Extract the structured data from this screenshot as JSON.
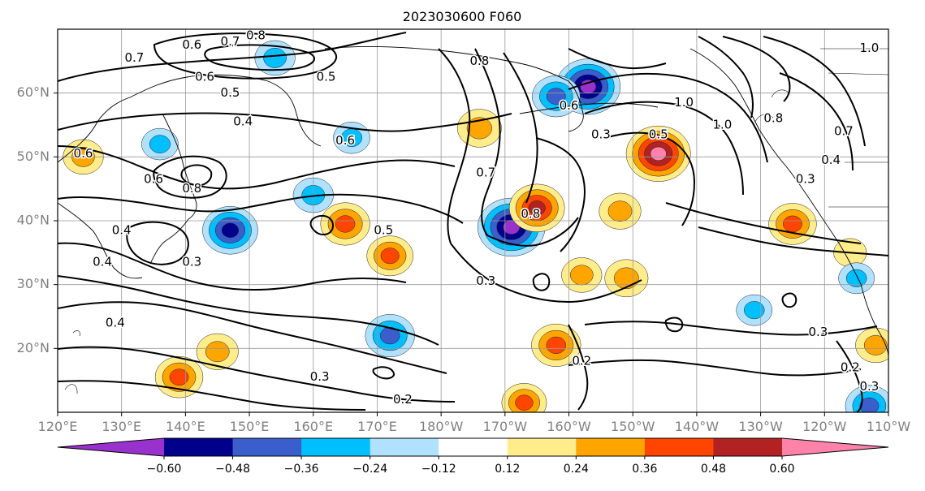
{
  "title": "2023030600 F060",
  "map": {
    "lat_ticks": [
      "60°N",
      "50°N",
      "40°N",
      "30°N",
      "20°N"
    ],
    "lon_ticks": [
      "120°E",
      "130°E",
      "140°E",
      "150°E",
      "160°E",
      "170°E",
      "180°W",
      "170°W",
      "160°W",
      "150°W",
      "140°W",
      "130°W",
      "120°W",
      "110°W"
    ],
    "lat_range": [
      10,
      70
    ],
    "lon_range": [
      120,
      250
    ]
  },
  "contour_labels": [
    {
      "text": "0.6",
      "lon": 141,
      "lat": 67.5
    },
    {
      "text": "0.7",
      "lon": 147,
      "lat": 68.0
    },
    {
      "text": "0.8",
      "lon": 151,
      "lat": 69.0
    },
    {
      "text": "0.7",
      "lon": 132,
      "lat": 65.5
    },
    {
      "text": "0.6",
      "lon": 143,
      "lat": 62.5
    },
    {
      "text": "0.5",
      "lon": 147,
      "lat": 60.0
    },
    {
      "text": "0.5",
      "lon": 162,
      "lat": 62.5
    },
    {
      "text": "0.4",
      "lon": 149,
      "lat": 55.5
    },
    {
      "text": "0.6",
      "lon": 165,
      "lat": 52.5
    },
    {
      "text": "0.6",
      "lon": 124,
      "lat": 50.5
    },
    {
      "text": "0.6",
      "lon": 135,
      "lat": 46.5
    },
    {
      "text": "0.8",
      "lon": 141,
      "lat": 45.0
    },
    {
      "text": "0.4",
      "lon": 130,
      "lat": 38.5
    },
    {
      "text": "0.4",
      "lon": 127,
      "lat": 33.5
    },
    {
      "text": "0.3",
      "lon": 141,
      "lat": 33.5
    },
    {
      "text": "0.4",
      "lon": 129,
      "lat": 24.0
    },
    {
      "text": "0.3",
      "lon": 161,
      "lat": 15.5
    },
    {
      "text": "0.2",
      "lon": 174,
      "lat": 12.0
    },
    {
      "text": "0.5",
      "lon": 171,
      "lat": 38.5
    },
    {
      "text": "0.7",
      "lon": 187,
      "lat": 47.5
    },
    {
      "text": "0.8",
      "lon": 194,
      "lat": 41.0
    },
    {
      "text": "0.3",
      "lon": 187,
      "lat": 30.5
    },
    {
      "text": "0.8",
      "lon": 186,
      "lat": 65.0
    },
    {
      "text": "0.6",
      "lon": 200,
      "lat": 58.0
    },
    {
      "text": "0.3",
      "lon": 205,
      "lat": 53.5
    },
    {
      "text": "0.5",
      "lon": 214,
      "lat": 53.5
    },
    {
      "text": "1.0",
      "lon": 218,
      "lat": 58.5
    },
    {
      "text": "1.0",
      "lon": 224,
      "lat": 55.0
    },
    {
      "text": "0.8",
      "lon": 232,
      "lat": 56.0
    },
    {
      "text": "0.7",
      "lon": 243,
      "lat": 54.0
    },
    {
      "text": "0.4",
      "lon": 241,
      "lat": 49.5
    },
    {
      "text": "0.3",
      "lon": 237,
      "lat": 46.5
    },
    {
      "text": "0.3",
      "lon": 239,
      "lat": 22.5
    },
    {
      "text": "0.2",
      "lon": 244,
      "lat": 17.0
    },
    {
      "text": "0.3",
      "lon": 247,
      "lat": 14.0
    },
    {
      "text": "1.0",
      "lon": 247,
      "lat": 67.0
    },
    {
      "text": "0.2",
      "lon": 202,
      "lat": 18.0
    }
  ],
  "anomalies": [
    {
      "lon": 147,
      "lat": 38.5,
      "value": -0.5
    },
    {
      "lon": 154,
      "lat": 65.5,
      "value": -0.3
    },
    {
      "lon": 203,
      "lat": 61.0,
      "value": -0.62
    },
    {
      "lon": 198,
      "lat": 59.5,
      "value": -0.4
    },
    {
      "lon": 191,
      "lat": 39.0,
      "value": -0.66
    },
    {
      "lon": 172,
      "lat": 22.0,
      "value": -0.42
    },
    {
      "lon": 160,
      "lat": 44.0,
      "value": -0.3
    },
    {
      "lon": 166,
      "lat": 53.0,
      "value": -0.25
    },
    {
      "lon": 136,
      "lat": 52.0,
      "value": -0.25
    },
    {
      "lon": 124,
      "lat": 50.0,
      "value": 0.3
    },
    {
      "lon": 186,
      "lat": 54.5,
      "value": 0.35
    },
    {
      "lon": 195,
      "lat": 42.0,
      "value": 0.5
    },
    {
      "lon": 214,
      "lat": 50.5,
      "value": 0.62
    },
    {
      "lon": 208,
      "lat": 41.5,
      "value": 0.32
    },
    {
      "lon": 235,
      "lat": 39.5,
      "value": 0.4
    },
    {
      "lon": 165,
      "lat": 39.5,
      "value": 0.42
    },
    {
      "lon": 172,
      "lat": 34.5,
      "value": 0.38
    },
    {
      "lon": 198,
      "lat": 20.5,
      "value": 0.42
    },
    {
      "lon": 139,
      "lat": 15.5,
      "value": 0.4
    },
    {
      "lon": 145,
      "lat": 19.5,
      "value": 0.32
    },
    {
      "lon": 193,
      "lat": 11.5,
      "value": 0.36
    },
    {
      "lon": 209,
      "lat": 31.0,
      "value": 0.34
    },
    {
      "lon": 202,
      "lat": 31.5,
      "value": 0.3
    },
    {
      "lon": 248,
      "lat": 20.5,
      "value": 0.3
    },
    {
      "lon": 244,
      "lat": 35.0,
      "value": 0.2
    },
    {
      "lon": 229,
      "lat": 26.0,
      "value": -0.24
    },
    {
      "lon": 245,
      "lat": 31.0,
      "value": -0.24
    },
    {
      "lon": 247,
      "lat": 11.0,
      "value": -0.4
    }
  ],
  "colorbar": {
    "colors": [
      "#9932cc",
      "#00008b",
      "#3a5fcd",
      "#00bfff",
      "#b0e2ff",
      "#ffffff",
      "#ffec8b",
      "#ffa500",
      "#ff4500",
      "#b22222",
      "#ff82ab"
    ],
    "tick_labels": [
      "−0.60",
      "−0.48",
      "−0.36",
      "−0.24",
      "−0.12",
      "0.12",
      "0.24",
      "0.36",
      "0.48",
      "0.60"
    ]
  }
}
